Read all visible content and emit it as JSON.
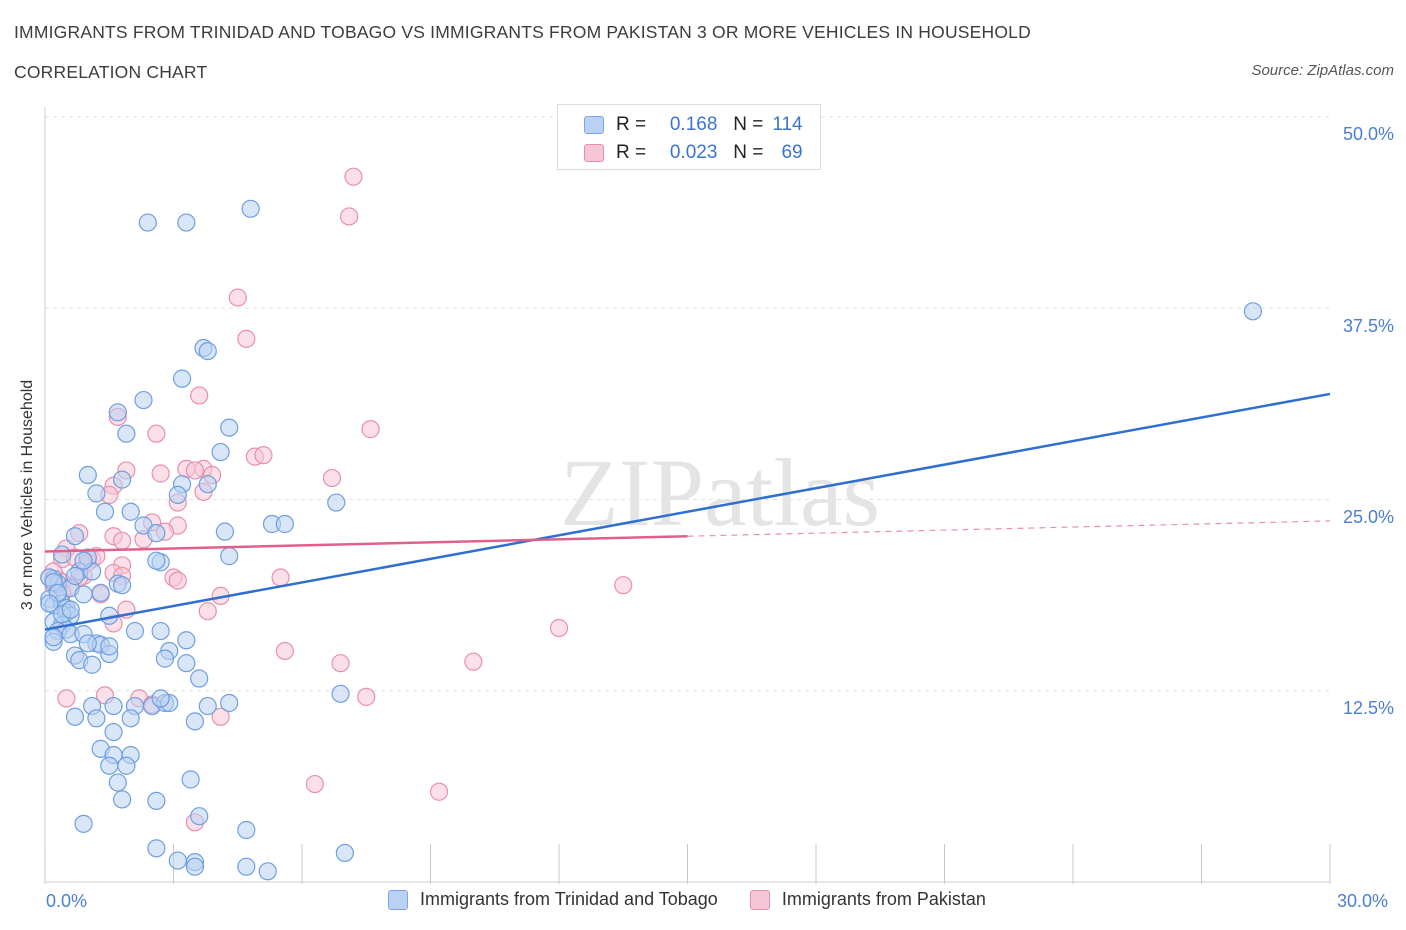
{
  "header": {
    "title": "IMMIGRANTS FROM TRINIDAD AND TOBAGO VS IMMIGRANTS FROM PAKISTAN 3 OR MORE VEHICLES IN HOUSEHOLD",
    "subtitle": "CORRELATION CHART",
    "source": "Source: ZipAtlas.com"
  },
  "legend_top": {
    "rows": [
      {
        "r_label": "R =",
        "r_value": "0.168",
        "n_label": "N =",
        "n_value": "114"
      },
      {
        "r_label": "R =",
        "r_value": "0.023",
        "n_label": "N =",
        "n_value": "69"
      }
    ]
  },
  "legend_bottom": {
    "items": [
      {
        "label": "Immigrants from Trinidad and Tobago"
      },
      {
        "label": "Immigrants from Pakistan"
      }
    ]
  },
  "colors": {
    "blue_fill": "#b9d2f3",
    "blue_stroke": "#6e9fe0",
    "blue_line": "#2f6fd0",
    "pink_fill": "#f7c6d6",
    "pink_stroke": "#e98fae",
    "pink_line": "#e0608a",
    "tick_text": "#4a7fd4",
    "grid": "#e2e2e2"
  },
  "chart_data": {
    "type": "scatter",
    "xlabel": "",
    "ylabel": "3 or more Vehicles in Household",
    "x_tick_labels": [
      "0.0%",
      "30.0%"
    ],
    "y_tick_labels": [
      "12.5%",
      "25.0%",
      "37.5%",
      "50.0%"
    ],
    "xlim": [
      0,
      30
    ],
    "ylim": [
      0,
      50
    ],
    "watermark": "ZIPatlas",
    "series": [
      {
        "name": "Immigrants from Trinidad and Tobago",
        "color": "#b9d2f3",
        "trend": {
          "x": [
            0,
            30
          ],
          "y": [
            16.5,
            31.9
          ]
        },
        "points": [
          [
            2.4,
            43.1
          ],
          [
            3.3,
            43.1
          ],
          [
            4.8,
            44.0
          ],
          [
            28.2,
            37.3
          ],
          [
            3.7,
            34.9
          ],
          [
            3.8,
            34.7
          ],
          [
            3.2,
            32.9
          ],
          [
            2.3,
            31.5
          ],
          [
            1.7,
            30.7
          ],
          [
            1.9,
            29.3
          ],
          [
            4.3,
            29.7
          ],
          [
            4.1,
            28.1
          ],
          [
            1.0,
            26.6
          ],
          [
            1.8,
            26.3
          ],
          [
            3.2,
            26.0
          ],
          [
            3.8,
            26.0
          ],
          [
            1.2,
            25.4
          ],
          [
            3.1,
            25.3
          ],
          [
            6.8,
            24.8
          ],
          [
            2.0,
            24.2
          ],
          [
            1.4,
            24.2
          ],
          [
            2.3,
            23.3
          ],
          [
            5.3,
            23.4
          ],
          [
            5.6,
            23.4
          ],
          [
            4.2,
            22.9
          ],
          [
            2.6,
            22.8
          ],
          [
            0.7,
            22.6
          ],
          [
            1.0,
            21.2
          ],
          [
            4.3,
            21.3
          ],
          [
            0.4,
            21.4
          ],
          [
            2.7,
            20.9
          ],
          [
            0.8,
            20.3
          ],
          [
            1.1,
            20.3
          ],
          [
            0.2,
            19.8
          ],
          [
            0.3,
            19.5
          ],
          [
            1.7,
            19.5
          ],
          [
            1.8,
            19.4
          ],
          [
            0.6,
            19.2
          ],
          [
            0.9,
            18.8
          ],
          [
            1.3,
            18.9
          ],
          [
            0.3,
            18.8
          ],
          [
            0.1,
            18.5
          ],
          [
            0.2,
            18.1
          ],
          [
            0.4,
            18.2
          ],
          [
            0.5,
            17.9
          ],
          [
            0.5,
            17.6
          ],
          [
            0.6,
            17.4
          ],
          [
            1.5,
            17.4
          ],
          [
            0.2,
            17.0
          ],
          [
            0.4,
            16.8
          ],
          [
            0.5,
            16.5
          ],
          [
            0.3,
            16.4
          ],
          [
            0.6,
            16.2
          ],
          [
            0.9,
            16.2
          ],
          [
            2.1,
            16.4
          ],
          [
            2.7,
            16.4
          ],
          [
            0.2,
            15.7
          ],
          [
            1.2,
            15.6
          ],
          [
            1.3,
            15.5
          ],
          [
            1.0,
            15.6
          ],
          [
            3.3,
            15.8
          ],
          [
            2.9,
            15.1
          ],
          [
            1.5,
            14.9
          ],
          [
            0.7,
            14.8
          ],
          [
            0.8,
            14.5
          ],
          [
            1.1,
            14.2
          ],
          [
            2.8,
            14.6
          ],
          [
            3.3,
            14.3
          ],
          [
            3.6,
            13.3
          ],
          [
            6.9,
            12.3
          ],
          [
            1.1,
            11.5
          ],
          [
            1.6,
            11.5
          ],
          [
            2.1,
            11.5
          ],
          [
            2.5,
            11.5
          ],
          [
            2.8,
            11.7
          ],
          [
            2.9,
            11.7
          ],
          [
            3.8,
            11.5
          ],
          [
            4.3,
            11.7
          ],
          [
            0.7,
            10.8
          ],
          [
            1.2,
            10.7
          ],
          [
            2.0,
            10.7
          ],
          [
            3.5,
            10.5
          ],
          [
            1.6,
            9.8
          ],
          [
            1.3,
            8.7
          ],
          [
            1.6,
            8.3
          ],
          [
            2.0,
            8.3
          ],
          [
            1.5,
            7.6
          ],
          [
            1.9,
            7.6
          ],
          [
            3.4,
            6.7
          ],
          [
            1.7,
            6.5
          ],
          [
            1.8,
            5.4
          ],
          [
            2.6,
            5.3
          ],
          [
            3.6,
            4.3
          ],
          [
            0.9,
            3.8
          ],
          [
            4.7,
            3.4
          ],
          [
            2.6,
            2.2
          ],
          [
            7.0,
            1.9
          ],
          [
            3.1,
            1.4
          ],
          [
            3.5,
            1.3
          ],
          [
            3.5,
            1.0
          ],
          [
            4.7,
            1.0
          ],
          [
            5.2,
            0.7
          ],
          [
            0.1,
            19.9
          ],
          [
            0.2,
            19.6
          ],
          [
            0.7,
            20.0
          ],
          [
            0.9,
            21.0
          ],
          [
            0.4,
            17.5
          ],
          [
            0.6,
            17.8
          ],
          [
            1.5,
            15.4
          ],
          [
            2.7,
            12.0
          ],
          [
            0.2,
            16.0
          ],
          [
            0.3,
            18.9
          ],
          [
            0.1,
            18.2
          ],
          [
            2.6,
            21.0
          ]
        ]
      },
      {
        "name": "Immigrants from Pakistan",
        "color": "#f7c6d6",
        "trend": {
          "x": [
            0,
            15
          ],
          "y": [
            21.6,
            22.6
          ]
        },
        "trend_dashed": {
          "x": [
            15,
            30
          ],
          "y": [
            22.6,
            23.6
          ]
        },
        "points": [
          [
            7.2,
            46.1
          ],
          [
            7.1,
            43.5
          ],
          [
            4.5,
            38.2
          ],
          [
            4.7,
            35.5
          ],
          [
            3.6,
            31.8
          ],
          [
            1.7,
            30.4
          ],
          [
            7.6,
            29.6
          ],
          [
            2.6,
            29.3
          ],
          [
            4.9,
            27.8
          ],
          [
            5.1,
            27.9
          ],
          [
            3.3,
            27.0
          ],
          [
            3.7,
            27.0
          ],
          [
            1.9,
            26.9
          ],
          [
            2.7,
            26.7
          ],
          [
            3.5,
            26.9
          ],
          [
            6.7,
            26.4
          ],
          [
            1.6,
            25.9
          ],
          [
            1.5,
            25.3
          ],
          [
            3.7,
            25.5
          ],
          [
            3.1,
            24.8
          ],
          [
            2.5,
            23.5
          ],
          [
            3.1,
            23.3
          ],
          [
            2.8,
            22.9
          ],
          [
            1.6,
            22.6
          ],
          [
            1.8,
            22.3
          ],
          [
            0.8,
            22.8
          ],
          [
            0.5,
            21.8
          ],
          [
            0.4,
            21.1
          ],
          [
            0.7,
            21.2
          ],
          [
            1.1,
            21.1
          ],
          [
            1.8,
            20.7
          ],
          [
            1.6,
            20.2
          ],
          [
            1.8,
            20.0
          ],
          [
            0.9,
            20.0
          ],
          [
            0.1,
            19.9
          ],
          [
            0.3,
            19.8
          ],
          [
            0.4,
            19.6
          ],
          [
            0.2,
            19.4
          ],
          [
            3.0,
            19.9
          ],
          [
            3.1,
            19.7
          ],
          [
            5.5,
            19.9
          ],
          [
            13.5,
            19.4
          ],
          [
            1.3,
            18.8
          ],
          [
            4.1,
            18.7
          ],
          [
            1.9,
            17.8
          ],
          [
            3.8,
            17.7
          ],
          [
            1.6,
            16.9
          ],
          [
            12.0,
            16.6
          ],
          [
            5.6,
            15.1
          ],
          [
            6.9,
            14.3
          ],
          [
            10.0,
            14.4
          ],
          [
            1.4,
            12.2
          ],
          [
            0.5,
            12.0
          ],
          [
            2.2,
            12.0
          ],
          [
            7.5,
            12.1
          ],
          [
            2.5,
            11.6
          ],
          [
            4.1,
            10.8
          ],
          [
            6.3,
            6.4
          ],
          [
            9.2,
            5.9
          ],
          [
            3.5,
            3.9
          ],
          [
            0.2,
            20.3
          ],
          [
            0.3,
            19.2
          ],
          [
            0.6,
            19.3
          ],
          [
            1.0,
            20.9
          ],
          [
            2.3,
            22.4
          ],
          [
            0.8,
            19.9
          ],
          [
            1.2,
            21.3
          ],
          [
            3.9,
            26.6
          ],
          [
            0.4,
            18.9
          ]
        ]
      }
    ]
  }
}
